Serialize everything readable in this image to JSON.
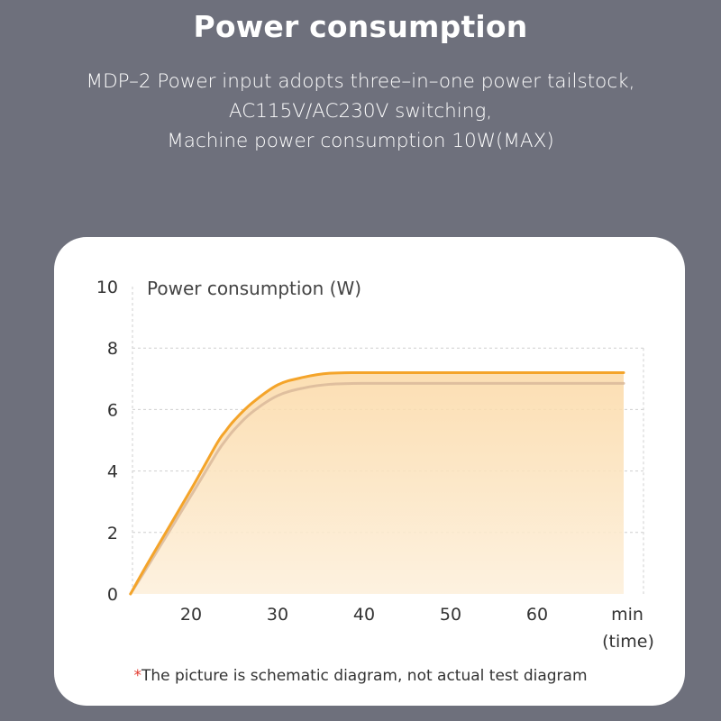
{
  "header": {
    "title": "Power consumption",
    "description": [
      "MDP–2 Power input adopts three–in–one power tailstock,",
      "AC115V/AC230V switching,",
      "Machine power consumption 10W(MAX)"
    ]
  },
  "chart_data": {
    "type": "area",
    "title": "Power consumption (W)",
    "x": [
      13,
      15,
      20,
      23,
      24,
      25,
      27,
      30,
      33,
      36,
      40,
      50,
      60,
      70
    ],
    "series": [
      {
        "values": [
          0,
          1.0,
          3.4,
          4.9,
          5.3,
          5.65,
          6.2,
          6.8,
          7.05,
          7.18,
          7.2,
          7.2,
          7.2,
          7.2
        ]
      },
      {
        "values": [
          0,
          0.9,
          3.2,
          4.6,
          5.0,
          5.35,
          5.9,
          6.45,
          6.7,
          6.82,
          6.85,
          6.85,
          6.85,
          6.85
        ]
      }
    ],
    "x_ticks": [
      "20",
      "30",
      "40",
      "50",
      "60"
    ],
    "x_unit": [
      "min",
      "(time)"
    ],
    "y_ticks": [
      "0",
      "2",
      "4",
      "6",
      "8",
      "10"
    ],
    "ylim": [
      0,
      10
    ],
    "grid": "dashed",
    "colors": {
      "line": "#f4a42a",
      "shadow": "#d9b99a",
      "fill": "#fbe0b6"
    }
  },
  "footnote": {
    "star": "*",
    "text": "The picture is schematic diagram, not actual test diagram"
  }
}
